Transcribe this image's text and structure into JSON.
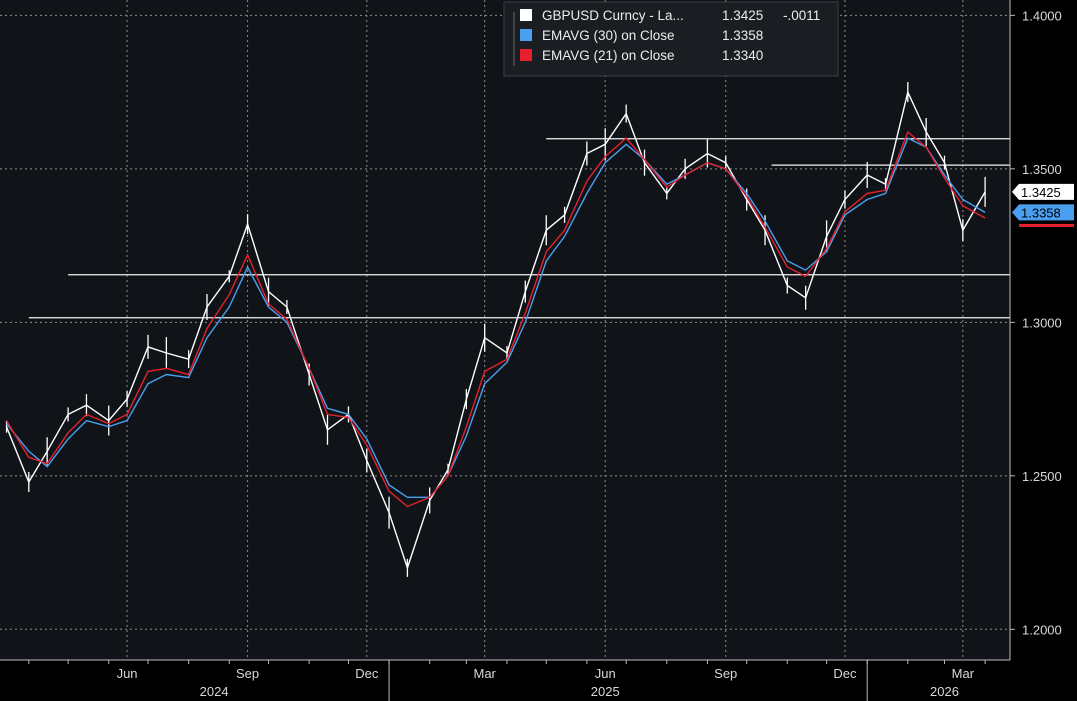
{
  "chart_data": {
    "type": "line",
    "ylim": [
      1.19,
      1.405
    ],
    "grid": true,
    "legend_position": "top-center",
    "y_ticks": [
      "1.4000",
      "1.3500",
      "1.3000",
      "1.2500",
      "1.2000"
    ],
    "y_tick_values": [
      1.4,
      1.35,
      1.3,
      1.25,
      1.2
    ],
    "x_month_labels": [
      "Jun",
      "Sep",
      "Dec",
      "Mar",
      "Jun",
      "Sep",
      "Dec",
      "Mar"
    ],
    "x_year_labels": [
      "2024",
      "2025",
      "2026"
    ],
    "legend": [
      {
        "label": "GBPUSD Curncy - La...",
        "value": "1.3425",
        "change": "-.0011",
        "color": "#ffffff"
      },
      {
        "label": "EMAVG (30)  on Close",
        "value": "1.3358",
        "change": "",
        "color": "#4a9ff0"
      },
      {
        "label": "EMAVG (21)  on Close",
        "value": "1.3340",
        "change": "",
        "color": "#e8202e"
      }
    ],
    "last_value_labels": [
      {
        "value": "1.3425",
        "bg": "#ffffff",
        "fg": "#000000"
      },
      {
        "value": "1.3358",
        "bg": "#4a9ff0",
        "fg": "#000000"
      }
    ],
    "horizontal_levels": [
      1.3598,
      1.3512,
      1.3155,
      1.3015
    ],
    "series": [
      {
        "name": "GBPUSD Curncy - La...",
        "color": "#ffffff",
        "x": [
          "2024-03-15",
          "2024-04-01",
          "2024-04-15",
          "2024-05-01",
          "2024-05-15",
          "2024-06-01",
          "2024-06-15",
          "2024-07-01",
          "2024-07-15",
          "2024-08-01",
          "2024-08-15",
          "2024-09-01",
          "2024-09-15",
          "2024-10-01",
          "2024-10-15",
          "2024-11-01",
          "2024-11-15",
          "2024-12-01",
          "2024-12-15",
          "2025-01-01",
          "2025-01-15",
          "2025-02-01",
          "2025-02-15",
          "2025-03-01",
          "2025-03-15",
          "2025-04-01",
          "2025-04-15",
          "2025-05-01",
          "2025-05-15",
          "2025-06-01",
          "2025-06-15",
          "2025-07-01",
          "2025-07-15",
          "2025-08-01",
          "2025-08-15",
          "2025-09-01",
          "2025-09-15",
          "2025-10-01",
          "2025-10-15",
          "2025-11-01",
          "2025-11-15",
          "2025-12-01",
          "2025-12-15",
          "2026-01-01",
          "2026-01-15",
          "2026-02-01",
          "2026-02-15",
          "2026-03-01",
          "2026-03-15",
          "2026-04-01"
        ],
        "y": [
          1.266,
          1.248,
          1.258,
          1.27,
          1.273,
          1.268,
          1.275,
          1.292,
          1.29,
          1.288,
          1.305,
          1.315,
          1.332,
          1.31,
          1.305,
          1.283,
          1.265,
          1.27,
          1.255,
          1.238,
          1.22,
          1.242,
          1.252,
          1.275,
          1.295,
          1.29,
          1.31,
          1.33,
          1.335,
          1.355,
          1.358,
          1.368,
          1.352,
          1.342,
          1.35,
          1.355,
          1.352,
          1.34,
          1.33,
          1.312,
          1.308,
          1.328,
          1.34,
          1.348,
          1.345,
          1.375,
          1.362,
          1.352,
          1.33,
          1.3425
        ]
      },
      {
        "name": "EMAVG (30)  on Close",
        "color": "#4a9ff0",
        "x": [
          "2024-03-15",
          "2024-04-01",
          "2024-04-15",
          "2024-05-01",
          "2024-05-15",
          "2024-06-01",
          "2024-06-15",
          "2024-07-01",
          "2024-07-15",
          "2024-08-01",
          "2024-08-15",
          "2024-09-01",
          "2024-09-15",
          "2024-10-01",
          "2024-10-15",
          "2024-11-01",
          "2024-11-15",
          "2024-12-01",
          "2024-12-15",
          "2025-01-01",
          "2025-01-15",
          "2025-02-01",
          "2025-02-15",
          "2025-03-01",
          "2025-03-15",
          "2025-04-01",
          "2025-04-15",
          "2025-05-01",
          "2025-05-15",
          "2025-06-01",
          "2025-06-15",
          "2025-07-01",
          "2025-07-15",
          "2025-08-01",
          "2025-08-15",
          "2025-09-01",
          "2025-09-15",
          "2025-10-01",
          "2025-10-15",
          "2025-11-01",
          "2025-11-15",
          "2025-12-01",
          "2025-12-15",
          "2026-01-01",
          "2026-01-15",
          "2026-02-01",
          "2026-02-15",
          "2026-03-01",
          "2026-03-15",
          "2026-04-01"
        ],
        "y": [
          1.267,
          1.258,
          1.253,
          1.262,
          1.268,
          1.266,
          1.268,
          1.28,
          1.283,
          1.282,
          1.295,
          1.305,
          1.318,
          1.305,
          1.3,
          1.285,
          1.272,
          1.27,
          1.262,
          1.247,
          1.243,
          1.243,
          1.25,
          1.263,
          1.28,
          1.287,
          1.3,
          1.32,
          1.328,
          1.342,
          1.352,
          1.358,
          1.353,
          1.345,
          1.348,
          1.352,
          1.35,
          1.342,
          1.333,
          1.32,
          1.317,
          1.323,
          1.335,
          1.34,
          1.342,
          1.36,
          1.357,
          1.348,
          1.34,
          1.3358
        ]
      },
      {
        "name": "EMAVG (21)  on Close",
        "color": "#e8202e",
        "x": [
          "2024-03-15",
          "2024-04-01",
          "2024-04-15",
          "2024-05-01",
          "2024-05-15",
          "2024-06-01",
          "2024-06-15",
          "2024-07-01",
          "2024-07-15",
          "2024-08-01",
          "2024-08-15",
          "2024-09-01",
          "2024-09-15",
          "2024-10-01",
          "2024-10-15",
          "2024-11-01",
          "2024-11-15",
          "2024-12-01",
          "2024-12-15",
          "2025-01-01",
          "2025-01-15",
          "2025-02-01",
          "2025-02-15",
          "2025-03-01",
          "2025-03-15",
          "2025-04-01",
          "2025-04-15",
          "2025-05-01",
          "2025-05-15",
          "2025-06-01",
          "2025-06-15",
          "2025-07-01",
          "2025-07-15",
          "2025-08-01",
          "2025-08-15",
          "2025-09-01",
          "2025-09-15",
          "2025-10-01",
          "2025-10-15",
          "2025-11-01",
          "2025-11-15",
          "2025-12-01",
          "2025-12-15",
          "2026-01-01",
          "2026-01-15",
          "2026-02-01",
          "2026-02-15",
          "2026-03-01",
          "2026-03-15",
          "2026-04-01"
        ],
        "y": [
          1.268,
          1.256,
          1.254,
          1.264,
          1.27,
          1.267,
          1.27,
          1.284,
          1.285,
          1.283,
          1.298,
          1.309,
          1.322,
          1.306,
          1.301,
          1.285,
          1.27,
          1.269,
          1.26,
          1.245,
          1.24,
          1.243,
          1.25,
          1.266,
          1.284,
          1.288,
          1.303,
          1.323,
          1.33,
          1.346,
          1.354,
          1.36,
          1.353,
          1.344,
          1.348,
          1.352,
          1.35,
          1.341,
          1.331,
          1.318,
          1.315,
          1.324,
          1.336,
          1.342,
          1.343,
          1.362,
          1.357,
          1.347,
          1.338,
          1.334
        ]
      }
    ]
  }
}
